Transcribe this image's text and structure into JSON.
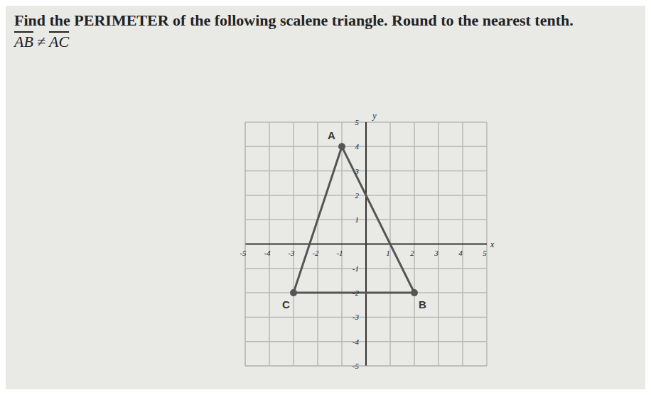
{
  "chart_data": {
    "type": "scatter",
    "title": "Find the PERIMETER of the following scalene triangle. Round to the nearest tenth.",
    "subtitle": "AB ≠ AC",
    "x_label": "x",
    "y_label": "y",
    "points": [
      {
        "label": "A",
        "x": -1,
        "y": 4
      },
      {
        "label": "B",
        "x": 2,
        "y": -2
      },
      {
        "label": "C",
        "x": -3,
        "y": -2
      }
    ],
    "xlim": [
      -5,
      5
    ],
    "ylim": [
      -5,
      5
    ],
    "xticks": [
      -5,
      -4,
      -3,
      -2,
      -1,
      1,
      2,
      3,
      4,
      5
    ],
    "yticks": [
      -5,
      -4,
      -3,
      -2,
      -1,
      1,
      2,
      3,
      4,
      5
    ],
    "grid": true,
    "color": "#555555",
    "marker": "circle",
    "line_style": "solid"
  }
}
